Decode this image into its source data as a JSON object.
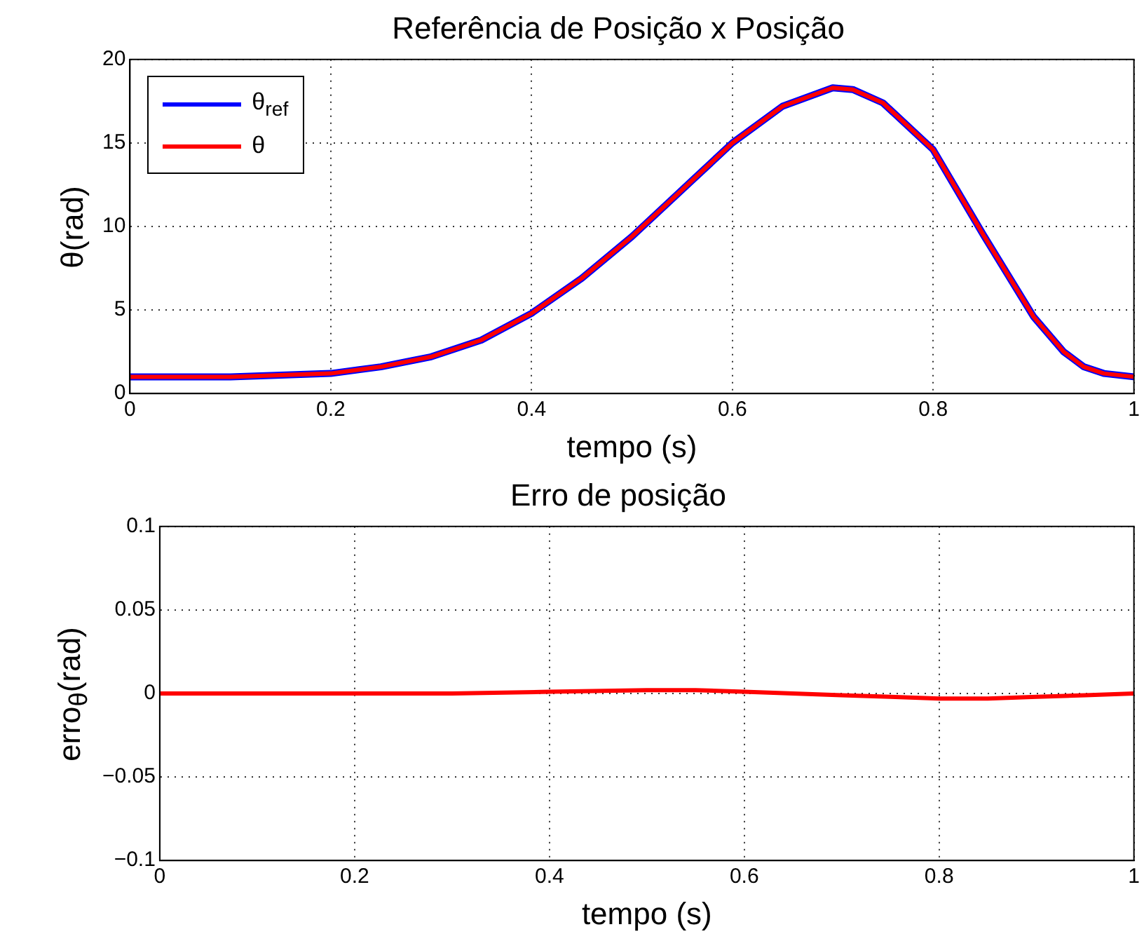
{
  "chart_data": [
    {
      "type": "line",
      "title": "Referência de Posição x Posição",
      "xlabel": "tempo (s)",
      "ylabel": "θ(rad)",
      "x": [
        0,
        0.1,
        0.2,
        0.25,
        0.3,
        0.35,
        0.4,
        0.45,
        0.5,
        0.55,
        0.6,
        0.65,
        0.7,
        0.72,
        0.75,
        0.8,
        0.85,
        0.9,
        0.93,
        0.95,
        0.97,
        1.0
      ],
      "series": [
        {
          "name": "θ$_{ref}$",
          "color": "#0000ff",
          "values": [
            1.0,
            1.0,
            1.2,
            1.6,
            2.2,
            3.2,
            4.8,
            6.9,
            9.4,
            12.2,
            15.0,
            17.2,
            18.3,
            18.2,
            17.4,
            14.6,
            9.5,
            4.6,
            2.5,
            1.6,
            1.2,
            1.0
          ]
        },
        {
          "name": "θ",
          "color": "#ff0000",
          "values": [
            1.0,
            1.0,
            1.2,
            1.6,
            2.2,
            3.2,
            4.8,
            6.9,
            9.4,
            12.2,
            15.0,
            17.2,
            18.3,
            18.2,
            17.4,
            14.6,
            9.5,
            4.6,
            2.5,
            1.6,
            1.2,
            1.0
          ]
        }
      ],
      "xlim": [
        0,
        1
      ],
      "xticks": [
        0,
        0.2,
        0.4,
        0.6,
        0.8,
        1
      ],
      "ylim": [
        0,
        20
      ],
      "yticks": [
        0,
        5,
        10,
        15,
        20
      ],
      "grid": true,
      "legend": "top left"
    },
    {
      "type": "line",
      "title": "Erro de posição",
      "xlabel": "tempo (s)",
      "ylabel": "erro$_{θ}$(rad)",
      "x": [
        0,
        0.2,
        0.3,
        0.4,
        0.5,
        0.55,
        0.6,
        0.65,
        0.7,
        0.75,
        0.8,
        0.85,
        0.9,
        0.95,
        1.0
      ],
      "series": [
        {
          "color": "#ff0000",
          "values": [
            0,
            0,
            0,
            0.001,
            0.002,
            0.002,
            0.001,
            0,
            -0.001,
            -0.002,
            -0.003,
            -0.003,
            -0.002,
            -0.001,
            0
          ]
        }
      ],
      "xlim": [
        0,
        1
      ],
      "xticks": [
        0,
        0.2,
        0.4,
        0.6,
        0.8,
        1
      ],
      "ylim": [
        -0.1,
        0.1
      ],
      "yticks": [
        -0.1,
        -0.05,
        0,
        0.05,
        0.1
      ],
      "grid": true
    }
  ]
}
